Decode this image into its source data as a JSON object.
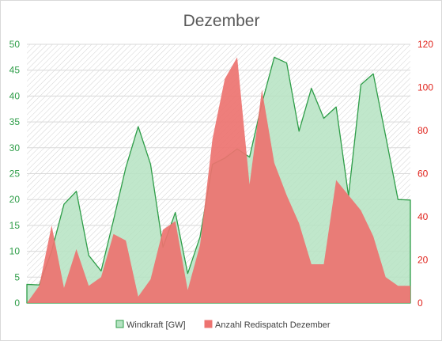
{
  "chart_data": {
    "type": "area",
    "title": "Dezember",
    "x_count": 32,
    "y_left": {
      "min": 0,
      "max": 50,
      "ticks": [
        0,
        5,
        10,
        15,
        20,
        25,
        30,
        35,
        40,
        45,
        50
      ],
      "color": "#2e9d48"
    },
    "y_right": {
      "min": 0,
      "max": 120,
      "ticks": [
        0,
        20,
        40,
        60,
        80,
        100,
        120
      ],
      "color": "#e0231c"
    },
    "grid": "horizontal",
    "legend_position": "bottom",
    "series": [
      {
        "name": "Windkraft [GW]",
        "axis": "left",
        "color": "#2e9d48",
        "fill": "#b5e3c2",
        "values": [
          3.6,
          3.5,
          10.0,
          19.1,
          21.6,
          9.2,
          6.2,
          16.0,
          26.2,
          34.1,
          26.8,
          10.8,
          17.5,
          5.7,
          12.8,
          26.8,
          28.0,
          29.8,
          28.2,
          38.6,
          47.5,
          46.4,
          33.2,
          41.5,
          35.7,
          37.9,
          20.7,
          42.2,
          44.3,
          32.3,
          20.0,
          19.9
        ]
      },
      {
        "name": "Anzahl Redispatch Dezember",
        "axis": "right",
        "color": "#e06666",
        "fill": "#ed7370",
        "values": [
          0,
          8,
          36,
          7,
          25,
          8,
          12,
          32,
          29,
          3,
          11,
          34,
          38,
          6,
          27,
          76,
          104,
          114,
          55,
          99,
          65,
          50,
          37,
          18,
          18,
          57,
          50,
          43,
          31,
          12,
          8,
          8
        ]
      }
    ]
  }
}
